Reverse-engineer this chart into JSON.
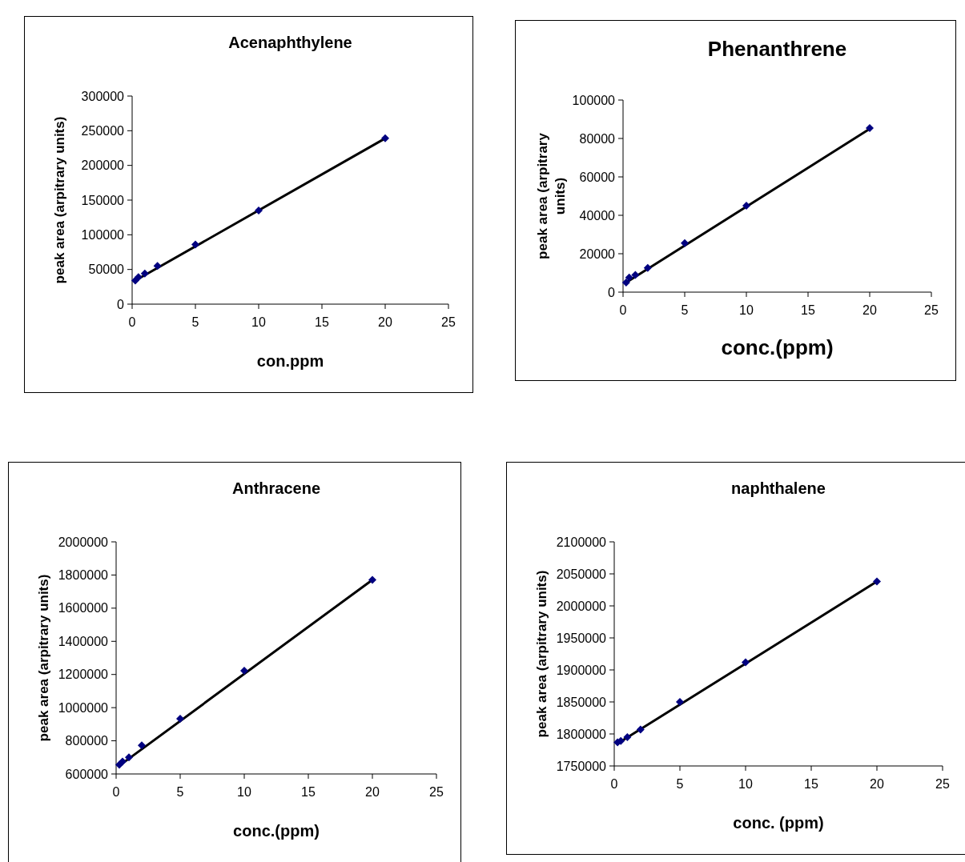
{
  "chart_data": [
    {
      "type": "scatter",
      "title": "Acenaphthylene",
      "xlabel": "con.ppm",
      "ylabel": "peak area (arpitrary units)",
      "xlim": [
        0,
        25
      ],
      "xticks": [
        0,
        5,
        10,
        15,
        20,
        25
      ],
      "ylim": [
        0,
        300000
      ],
      "yticks": [
        0,
        50000,
        100000,
        150000,
        200000,
        250000,
        300000
      ],
      "marker": "diamond",
      "series": [
        {
          "type": "line",
          "color": "#000000",
          "marker": "none",
          "x": [
            0.25,
            20
          ],
          "values": [
            34000,
            239000
          ]
        },
        {
          "type": "scatter",
          "color": "#000080",
          "x": [
            0.25,
            0.5,
            1,
            2,
            5,
            10,
            20
          ],
          "values": [
            34000,
            39000,
            44000,
            55000,
            86000,
            135000,
            239000
          ]
        }
      ]
    },
    {
      "type": "scatter",
      "title": "Phenanthrene",
      "xlabel": "conc.(ppm)",
      "ylabel": "peak area (arpitrary units)",
      "xlim": [
        0,
        25
      ],
      "xticks": [
        0,
        5,
        10,
        15,
        20,
        25
      ],
      "ylim": [
        0,
        100000
      ],
      "yticks": [
        0,
        20000,
        40000,
        60000,
        80000,
        100000
      ],
      "marker": "diamond",
      "series": [
        {
          "type": "line",
          "color": "#000000",
          "marker": "none",
          "x": [
            0.25,
            20
          ],
          "values": [
            5000,
            85000
          ]
        },
        {
          "type": "scatter",
          "color": "#000080",
          "x": [
            0.25,
            0.5,
            1,
            2,
            5,
            10,
            20
          ],
          "values": [
            5000,
            7600,
            9000,
            12600,
            25500,
            45000,
            85400
          ]
        }
      ]
    },
    {
      "type": "scatter",
      "title": "Anthracene",
      "xlabel": "conc.(ppm)",
      "ylabel": "peak area (arpitrary units)",
      "xlim": [
        0,
        25
      ],
      "xticks": [
        0,
        5,
        10,
        15,
        20,
        25
      ],
      "ylim": [
        600000,
        2000000
      ],
      "yticks": [
        600000,
        800000,
        1000000,
        1200000,
        1400000,
        1600000,
        1800000,
        2000000
      ],
      "marker": "diamond",
      "series": [
        {
          "type": "line",
          "color": "#000000",
          "marker": "none",
          "x": [
            0.25,
            20
          ],
          "values": [
            650000,
            1771000
          ]
        },
        {
          "type": "scatter",
          "color": "#000080",
          "x": [
            0.25,
            0.5,
            1,
            2,
            5,
            10,
            20
          ],
          "values": [
            655000,
            675000,
            700000,
            772000,
            933000,
            1223000,
            1771000
          ]
        }
      ]
    },
    {
      "type": "scatter",
      "title": "naphthalene",
      "xlabel": "conc. (ppm)",
      "ylabel": "peak area (arpitrary units)",
      "xlim": [
        0,
        25
      ],
      "xticks": [
        0,
        5,
        10,
        15,
        20,
        25
      ],
      "ylim": [
        1750000,
        2100000
      ],
      "yticks": [
        1750000,
        1800000,
        1850000,
        1900000,
        1950000,
        2000000,
        2050000,
        2100000
      ],
      "marker": "diamond",
      "series": [
        {
          "type": "line",
          "color": "#000000",
          "marker": "none",
          "x": [
            0.25,
            20
          ],
          "values": [
            1785000,
            2038000
          ]
        },
        {
          "type": "scatter",
          "color": "#000080",
          "x": [
            0.25,
            0.5,
            1,
            2,
            5,
            10,
            20
          ],
          "values": [
            1787000,
            1789000,
            1795000,
            1807000,
            1850000,
            1912000,
            2038000
          ]
        }
      ]
    }
  ]
}
